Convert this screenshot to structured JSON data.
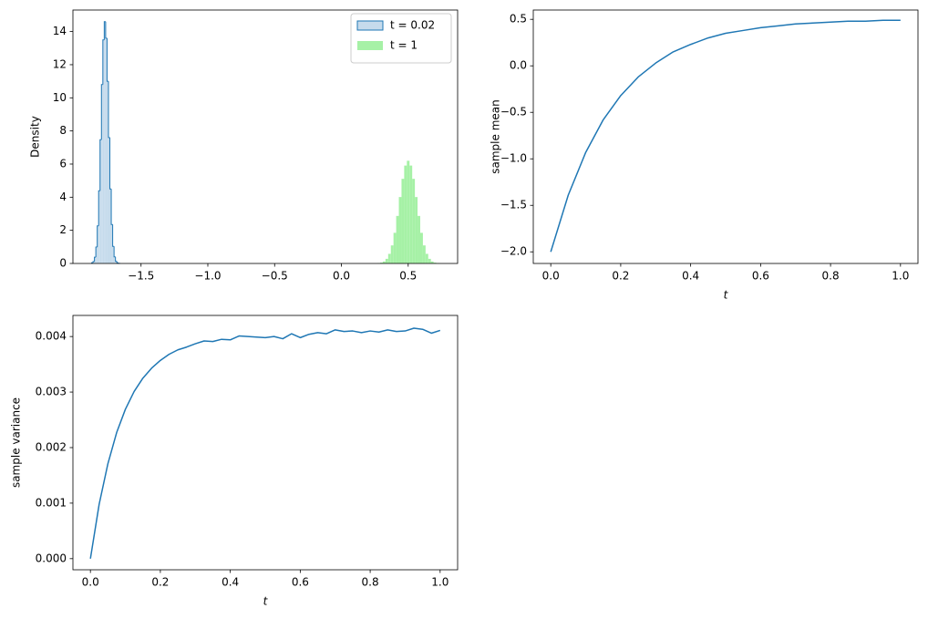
{
  "chart_data": [
    {
      "type": "histogram",
      "ylabel": "Density",
      "legend": "upper right",
      "xlim": [
        -2.01,
        0.87
      ],
      "ylim": [
        0,
        15.3
      ],
      "xticks": [
        {
          "value": -1.5,
          "label": "−1.5"
        },
        {
          "value": -1,
          "label": "−1.0"
        },
        {
          "value": -0.5,
          "label": "−0.5"
        },
        {
          "value": 0,
          "label": "0.0"
        },
        {
          "value": 0.5,
          "label": "0.5"
        }
      ],
      "yticks": [
        0,
        2,
        4,
        6,
        8,
        10,
        12,
        14
      ],
      "series": [
        {
          "name": "t = 0.02",
          "color": "#c6dbec",
          "edgecolor": "#1f77b4",
          "bins": [
            -1.87,
            -1.8595,
            -1.849,
            -1.8385,
            -1.828,
            -1.8175,
            -1.807,
            -1.7965,
            -1.786,
            -1.7755,
            -1.765,
            -1.7545,
            -1.744,
            -1.7335,
            -1.723,
            -1.7125,
            -1.702,
            -1.6915,
            -1.681,
            -1.6705,
            -1.66
          ],
          "values": [
            0.04,
            0.12,
            0.38,
            0.99,
            2.27,
            4.39,
            7.47,
            10.8,
            13.5,
            14.6,
            13.6,
            11.0,
            7.6,
            4.5,
            2.35,
            1.03,
            0.4,
            0.13,
            0.04,
            0.01
          ]
        },
        {
          "name": "t = 1",
          "color": "#a6f1a6",
          "bins": [
            0.27,
            0.29,
            0.31,
            0.33,
            0.35,
            0.37,
            0.39,
            0.41,
            0.43,
            0.45,
            0.47,
            0.49,
            0.51,
            0.53,
            0.55,
            0.57,
            0.59,
            0.61,
            0.63,
            0.65,
            0.67,
            0.69,
            0.71,
            0.73,
            0.75
          ],
          "values": [
            0.02,
            0.05,
            0.12,
            0.28,
            0.58,
            1.09,
            1.85,
            2.87,
            4.01,
            5.11,
            5.91,
            6.2,
            5.91,
            5.11,
            4.01,
            2.87,
            1.85,
            1.09,
            0.58,
            0.28,
            0.12,
            0.05,
            0.02,
            0.01
          ]
        }
      ]
    },
    {
      "type": "line",
      "xlabel": "t",
      "ylabel": "sample mean",
      "color": "#1f77b4",
      "xlim": [
        -0.05,
        1.05
      ],
      "ylim": [
        -2.125,
        0.6
      ],
      "xticks": [
        {
          "value": 0,
          "label": "0.0"
        },
        {
          "value": 0.2,
          "label": "0.2"
        },
        {
          "value": 0.4,
          "label": "0.4"
        },
        {
          "value": 0.6,
          "label": "0.6"
        },
        {
          "value": 0.8,
          "label": "0.8"
        },
        {
          "value": 1,
          "label": "1.0"
        }
      ],
      "yticks": [
        {
          "value": -2,
          "label": "−2.0"
        },
        {
          "value": -1.5,
          "label": "−1.5"
        },
        {
          "value": -1,
          "label": "−1.0"
        },
        {
          "value": -0.5,
          "label": "−0.5"
        },
        {
          "value": 0,
          "label": "0.0"
        },
        {
          "value": 0.5,
          "label": "0.5"
        }
      ],
      "x": [
        0,
        0.05,
        0.1,
        0.15,
        0.2,
        0.25,
        0.3,
        0.35,
        0.4,
        0.45,
        0.5,
        0.55,
        0.6,
        0.65,
        0.7,
        0.75,
        0.8,
        0.85,
        0.9,
        0.95,
        1
      ],
      "values": [
        -2,
        -1.39,
        -0.93,
        -0.58,
        -0.32,
        -0.12,
        0.03,
        0.15,
        0.23,
        0.3,
        0.35,
        0.38,
        0.41,
        0.43,
        0.45,
        0.46,
        0.47,
        0.48,
        0.48,
        0.49,
        0.49
      ]
    },
    {
      "type": "line",
      "xlabel": "t",
      "ylabel": "sample variance",
      "color": "#1f77b4",
      "xlim": [
        -0.05,
        1.05
      ],
      "ylim": [
        -0.0002,
        0.00438
      ],
      "xticks": [
        {
          "value": 0,
          "label": "0.0"
        },
        {
          "value": 0.2,
          "label": "0.2"
        },
        {
          "value": 0.4,
          "label": "0.4"
        },
        {
          "value": 0.6,
          "label": "0.6"
        },
        {
          "value": 0.8,
          "label": "0.8"
        },
        {
          "value": 1,
          "label": "1.0"
        }
      ],
      "yticks": [
        {
          "value": 0,
          "label": "0.000"
        },
        {
          "value": 0.001,
          "label": "0.001"
        },
        {
          "value": 0.002,
          "label": "0.002"
        },
        {
          "value": 0.003,
          "label": "0.003"
        },
        {
          "value": 0.004,
          "label": "0.004"
        }
      ],
      "x": [
        0,
        0.025,
        0.05,
        0.075,
        0.1,
        0.125,
        0.15,
        0.175,
        0.2,
        0.225,
        0.25,
        0.275,
        0.3,
        0.325,
        0.35,
        0.375,
        0.4,
        0.425,
        0.45,
        0.475,
        0.5,
        0.525,
        0.55,
        0.575,
        0.6,
        0.625,
        0.65,
        0.675,
        0.7,
        0.725,
        0.75,
        0.775,
        0.8,
        0.825,
        0.85,
        0.875,
        0.9,
        0.925,
        0.95,
        0.975,
        1
      ],
      "values": [
        0,
        0.00098,
        0.00171,
        0.00227,
        0.00269,
        0.00301,
        0.00325,
        0.00343,
        0.00357,
        0.00368,
        0.00376,
        0.00381,
        0.00387,
        0.00392,
        0.00391,
        0.00395,
        0.00394,
        0.00401,
        0.004,
        0.00399,
        0.00398,
        0.004,
        0.00396,
        0.00405,
        0.00398,
        0.00404,
        0.00407,
        0.00405,
        0.00412,
        0.00409,
        0.0041,
        0.00407,
        0.0041,
        0.00408,
        0.00412,
        0.00409,
        0.0041,
        0.00415,
        0.00413,
        0.00406,
        0.00411
      ]
    }
  ]
}
